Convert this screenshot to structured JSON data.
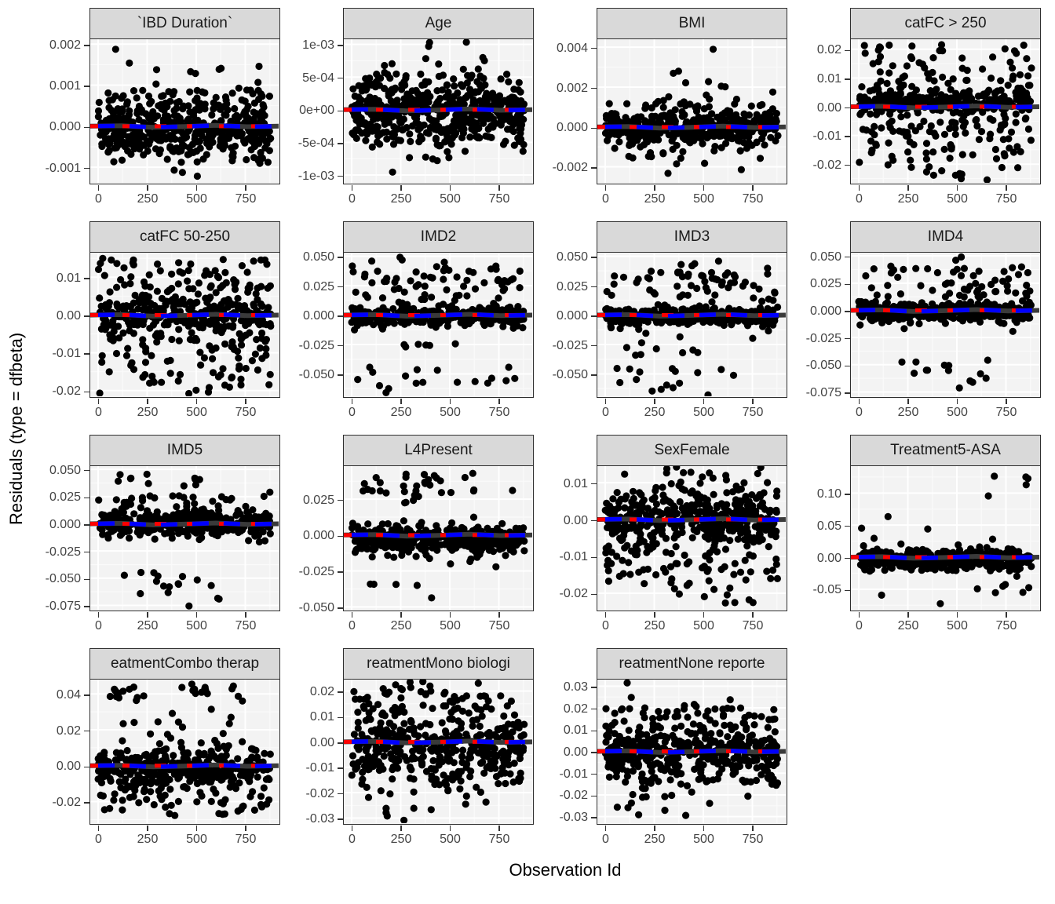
{
  "figure": {
    "y_axis_title": "Residuals (type = dfbeta)",
    "x_axis_title": "Observation Id"
  },
  "style": {
    "strip_bg": "#D9D9D9",
    "strip_text": "#1A1A1A",
    "panel_bg": "#F3F3F3",
    "grid_major": "#FFFFFF",
    "grid_minor": "#FAFAFA",
    "border": "#2F2F2F",
    "tick_text": "#444444",
    "point_color": "#000000",
    "reference_line_color": "#FF0000",
    "smooth_line_color": "#0000FF",
    "under_line_color": "#3A3A3A"
  },
  "chart_data": {
    "type": "scatter",
    "description": "Faceted dfbeta residual scatter plots per model term; black points, red dashed reference line at y=0 overlaid with blue dashed smooth line on a dark solid line.",
    "x": {
      "label": "Observation Id",
      "range": [
        -40,
        920
      ],
      "ticks": [
        {
          "label": "0",
          "v": 0
        },
        {
          "label": "250",
          "v": 250
        },
        {
          "label": "500",
          "v": 500
        },
        {
          "label": "750",
          "v": 750
        }
      ],
      "minor": [
        125,
        375,
        625,
        875
      ]
    },
    "reference_line": {
      "y": 0,
      "style": "dashed red + dashed blue over dark solid"
    },
    "facets": [
      {
        "title": "`IBD Duration`",
        "ylim": [
          -0.00138,
          0.00212
        ],
        "seed": 11,
        "yticks": [
          {
            "label": "0.002",
            "v": 0.002
          },
          {
            "label": "0.001",
            "v": 0.001
          },
          {
            "label": "0.000",
            "v": 0.0
          },
          {
            "label": "-0.001",
            "v": -0.001
          }
        ],
        "core": {
          "n": 380,
          "mu": -3e-05,
          "sd": 0.00028
        },
        "bands": [
          [
            55,
            0.0003,
            0.0009
          ],
          [
            40,
            -0.0009,
            -0.0003
          ],
          [
            6,
            0.0009,
            0.0015,
            250,
            880
          ],
          [
            1,
            0.00185,
            0.00195,
            30,
            90
          ],
          [
            3,
            0.0013,
            0.0015,
            500,
            880
          ],
          [
            3,
            -0.0013,
            -0.001,
            350,
            600
          ]
        ]
      },
      {
        "title": "Age",
        "ylim": [
          -0.00112,
          0.00108
        ],
        "seed": 22,
        "yticks": [
          {
            "label": "1e-03",
            "v": 0.001
          },
          {
            "label": "5e-04",
            "v": 0.0005
          },
          {
            "label": "0e+00",
            "v": 0.0
          },
          {
            "label": "-5e-04",
            "v": -0.0005
          },
          {
            "label": "-1e-03",
            "v": -0.001
          }
        ],
        "core": {
          "n": 420,
          "mu": -2e-05,
          "sd": 0.00018
        },
        "bands": [
          [
            45,
            0.00025,
            0.00055
          ],
          [
            55,
            -0.00055,
            -0.00025
          ],
          [
            8,
            0.00055,
            0.0009,
            150,
            700
          ],
          [
            2,
            0.00095,
            0.00105,
            180,
            430
          ],
          [
            6,
            -0.0008,
            -0.00055,
            250,
            650
          ],
          [
            1,
            -0.00098,
            -0.00092,
            180,
            220
          ]
        ]
      },
      {
        "title": "BMI",
        "ylim": [
          -0.0028,
          0.0044
        ],
        "seed": 33,
        "yticks": [
          {
            "label": "0.004",
            "v": 0.004
          },
          {
            "label": "0.002",
            "v": 0.002
          },
          {
            "label": "0.000",
            "v": 0.0
          },
          {
            "label": "-0.002",
            "v": -0.002
          }
        ],
        "core": {
          "n": 430,
          "mu": -5e-05,
          "sd": 0.00042
        },
        "bands": [
          [
            15,
            0.0009,
            0.0014
          ],
          [
            6,
            0.0016,
            0.0023,
            250,
            880
          ],
          [
            2,
            0.0025,
            0.0034,
            300,
            480
          ],
          [
            1,
            0.0038,
            0.004,
            540,
            580
          ],
          [
            8,
            -0.0016,
            -0.0011,
            100,
            800
          ],
          [
            1,
            -0.0025,
            -0.0023,
            320,
            360
          ]
        ]
      },
      {
        "title": "catFC > 250",
        "ylim": [
          -0.0265,
          0.0235
        ],
        "seed": 44,
        "yticks": [
          {
            "label": "0.02",
            "v": 0.02
          },
          {
            "label": "0.01",
            "v": 0.01
          },
          {
            "label": "0.00",
            "v": 0.0
          },
          {
            "label": "-0.01",
            "v": -0.01
          },
          {
            "label": "-0.02",
            "v": -0.02
          }
        ],
        "core": {
          "n": 280,
          "mu": 0.0012,
          "sd": 0.0016
        },
        "bands": [
          [
            50,
            0.004,
            0.012
          ],
          [
            35,
            0.012,
            0.022
          ],
          [
            60,
            -0.01,
            -0.002
          ],
          [
            45,
            -0.022,
            -0.01
          ],
          [
            8,
            -0.026,
            -0.022,
            300,
            700
          ]
        ]
      },
      {
        "title": "catFC 50-250",
        "ylim": [
          -0.0215,
          0.0165
        ],
        "seed": 55,
        "yticks": [
          {
            "label": "0.01",
            "v": 0.01
          },
          {
            "label": "0.00",
            "v": 0.0
          },
          {
            "label": "-0.01",
            "v": -0.01
          },
          {
            "label": "-0.02",
            "v": -0.02
          }
        ],
        "core": {
          "n": 320,
          "mu": 0.0,
          "sd": 0.0028
        },
        "bands": [
          [
            55,
            0.007,
            0.015
          ],
          [
            35,
            -0.012,
            -0.006
          ],
          [
            40,
            -0.021,
            -0.012
          ]
        ]
      },
      {
        "title": "IMD2",
        "ylim": [
          -0.069,
          0.053
        ],
        "seed": 66,
        "yticks": [
          {
            "label": "0.050",
            "v": 0.05
          },
          {
            "label": "0.025",
            "v": 0.025
          },
          {
            "label": "0.000",
            "v": 0.0
          },
          {
            "label": "-0.025",
            "v": -0.025
          },
          {
            "label": "-0.050",
            "v": -0.05
          }
        ],
        "core": {
          "n": 360,
          "mu": -0.0012,
          "sd": 0.0035
        },
        "bands": [
          [
            60,
            0.012,
            0.042
          ],
          [
            4,
            0.042,
            0.05,
            100,
            560
          ],
          [
            6,
            -0.028,
            -0.02,
            200,
            560
          ],
          [
            10,
            -0.056,
            -0.044
          ],
          [
            8,
            -0.067,
            -0.056,
            50,
            700
          ]
        ]
      },
      {
        "title": "IMD3",
        "ylim": [
          -0.069,
          0.053
        ],
        "seed": 77,
        "yticks": [
          {
            "label": "0.050",
            "v": 0.05
          },
          {
            "label": "0.025",
            "v": 0.025
          },
          {
            "label": "0.000",
            "v": 0.0
          },
          {
            "label": "-0.025",
            "v": -0.025
          },
          {
            "label": "-0.050",
            "v": -0.05
          }
        ],
        "core": {
          "n": 360,
          "mu": -0.0012,
          "sd": 0.0035
        },
        "bands": [
          [
            55,
            0.012,
            0.04
          ],
          [
            4,
            0.04,
            0.048,
            350,
            620
          ],
          [
            8,
            -0.035,
            -0.022,
            80,
            500
          ],
          [
            9,
            -0.055,
            -0.044,
            60,
            680
          ],
          [
            7,
            -0.068,
            -0.055,
            50,
            680
          ]
        ]
      },
      {
        "title": "IMD4",
        "ylim": [
          -0.079,
          0.053
        ],
        "seed": 88,
        "yticks": [
          {
            "label": "0.050",
            "v": 0.05
          },
          {
            "label": "0.025",
            "v": 0.025
          },
          {
            "label": "0.000",
            "v": 0.0
          },
          {
            "label": "-0.025",
            "v": -0.025
          },
          {
            "label": "-0.050",
            "v": -0.05
          },
          {
            "label": "-0.075",
            "v": -0.075
          }
        ],
        "core": {
          "n": 370,
          "mu": -0.0012,
          "sd": 0.004
        },
        "bands": [
          [
            55,
            0.012,
            0.042
          ],
          [
            2,
            0.044,
            0.05,
            440,
            530
          ],
          [
            9,
            -0.058,
            -0.045,
            60,
            700
          ],
          [
            4,
            -0.068,
            -0.058,
            550,
            700
          ],
          [
            1,
            -0.072,
            -0.068,
            480,
            540
          ]
        ]
      },
      {
        "title": "IMD5",
        "ylim": [
          -0.079,
          0.053
        ],
        "seed": 99,
        "yticks": [
          {
            "label": "0.050",
            "v": 0.05
          },
          {
            "label": "0.025",
            "v": 0.025
          },
          {
            "label": "0.000",
            "v": 0.0
          },
          {
            "label": "-0.025",
            "v": -0.025
          },
          {
            "label": "-0.050",
            "v": -0.05
          },
          {
            "label": "-0.075",
            "v": -0.075
          }
        ],
        "core": {
          "n": 380,
          "mu": 0.0,
          "sd": 0.006
        },
        "bands": [
          [
            25,
            0.014,
            0.026
          ],
          [
            6,
            0.036,
            0.047,
            60,
            260
          ],
          [
            5,
            0.028,
            0.047,
            430,
            520
          ],
          [
            8,
            -0.056,
            -0.044,
            30,
            620
          ],
          [
            6,
            -0.065,
            -0.055,
            120,
            620
          ],
          [
            3,
            -0.077,
            -0.068,
            450,
            620
          ]
        ]
      },
      {
        "title": "L4Present",
        "ylim": [
          -0.052,
          0.048
        ],
        "seed": 110,
        "yticks": [
          {
            "label": "0.025",
            "v": 0.025
          },
          {
            "label": "0.000",
            "v": 0.0
          },
          {
            "label": "-0.025",
            "v": -0.025
          },
          {
            "label": "-0.050",
            "v": -0.05
          }
        ],
        "core": {
          "n": 400,
          "mu": -0.004,
          "sd": 0.0045
        },
        "bands": [
          [
            18,
            0.03,
            0.044,
            50,
            460
          ],
          [
            14,
            0.022,
            0.032,
            50,
            700
          ],
          [
            2,
            0.04,
            0.045,
            560,
            660
          ],
          [
            1,
            0.029,
            0.032,
            780,
            830
          ],
          [
            4,
            -0.036,
            -0.028,
            60,
            400
          ],
          [
            1,
            -0.046,
            -0.043,
            380,
            430
          ]
        ]
      },
      {
        "title": "SexFemale",
        "ylim": [
          -0.0245,
          0.0145
        ],
        "seed": 121,
        "yticks": [
          {
            "label": "0.01",
            "v": 0.01
          },
          {
            "label": "0.00",
            "v": 0.0
          },
          {
            "label": "-0.01",
            "v": -0.01
          },
          {
            "label": "-0.02",
            "v": -0.02
          }
        ],
        "core": {
          "n": 430,
          "mu": 0.0005,
          "sd": 0.0042
        },
        "bands": [
          [
            45,
            -0.018,
            -0.009
          ],
          [
            10,
            -0.023,
            -0.018,
            150,
            850
          ],
          [
            8,
            0.01,
            0.013,
            80,
            800
          ]
        ]
      },
      {
        "title": "Treatment5-ASA",
        "ylim": [
          -0.082,
          0.142
        ],
        "seed": 132,
        "yticks": [
          {
            "label": "0.10",
            "v": 0.1
          },
          {
            "label": "0.05",
            "v": 0.05
          },
          {
            "label": "0.00",
            "v": 0.0
          },
          {
            "label": "-0.05",
            "v": -0.05
          }
        ],
        "core": {
          "n": 420,
          "mu": -0.003,
          "sd": 0.008
        },
        "bands": [
          [
            4,
            0.112,
            0.135,
            580,
            880
          ],
          [
            1,
            0.062,
            0.068,
            120,
            175
          ],
          [
            1,
            0.093,
            0.098,
            640,
            690
          ],
          [
            6,
            -0.058,
            -0.042,
            550,
            880
          ],
          [
            1,
            -0.062,
            -0.058,
            80,
            125
          ],
          [
            1,
            -0.075,
            -0.071,
            380,
            430
          ]
        ]
      },
      {
        "title": "eatmentCombo therap",
        "ylim": [
          -0.032,
          0.048
        ],
        "seed": 143,
        "yticks": [
          {
            "label": "0.04",
            "v": 0.04
          },
          {
            "label": "0.02",
            "v": 0.02
          },
          {
            "label": "0.00",
            "v": 0.0
          },
          {
            "label": "-0.02",
            "v": -0.02
          }
        ],
        "core": {
          "n": 390,
          "mu": -0.002,
          "sd": 0.0055
        },
        "bands": [
          [
            12,
            0.036,
            0.046,
            60,
            270
          ],
          [
            10,
            0.04,
            0.047,
            420,
            570
          ],
          [
            4,
            0.036,
            0.046,
            640,
            740
          ],
          [
            10,
            0.016,
            0.034,
            60,
            700
          ],
          [
            35,
            -0.028,
            -0.016
          ]
        ]
      },
      {
        "title": "reatmentMono biologi",
        "ylim": [
          -0.032,
          0.0245
        ],
        "seed": 154,
        "yticks": [
          {
            "label": "0.02",
            "v": 0.02
          },
          {
            "label": "0.01",
            "v": 0.01
          },
          {
            "label": "0.00",
            "v": 0.0
          },
          {
            "label": "-0.01",
            "v": -0.01
          },
          {
            "label": "-0.02",
            "v": -0.02
          },
          {
            "label": "-0.03",
            "v": -0.03
          }
        ],
        "core": {
          "n": 340,
          "mu": -0.001,
          "sd": 0.0055
        },
        "bands": [
          [
            55,
            0.008,
            0.021
          ],
          [
            4,
            0.021,
            0.025,
            60,
            520
          ],
          [
            45,
            -0.017,
            -0.008
          ],
          [
            14,
            -0.028,
            -0.017,
            60,
            760
          ],
          [
            2,
            -0.031,
            -0.028,
            100,
            430
          ]
        ]
      },
      {
        "title": "reatmentNone reporte",
        "ylim": [
          -0.033,
          0.033
        ],
        "seed": 165,
        "yticks": [
          {
            "label": "0.03",
            "v": 0.03
          },
          {
            "label": "0.02",
            "v": 0.02
          },
          {
            "label": "0.01",
            "v": 0.01
          },
          {
            "label": "0.00",
            "v": 0.0
          },
          {
            "label": "-0.01",
            "v": -0.01
          },
          {
            "label": "-0.02",
            "v": -0.02
          },
          {
            "label": "-0.03",
            "v": -0.03
          }
        ],
        "core": {
          "n": 350,
          "mu": -0.001,
          "sd": 0.005
        },
        "bands": [
          [
            55,
            0.008,
            0.02
          ],
          [
            5,
            0.02,
            0.026,
            60,
            650
          ],
          [
            1,
            0.03,
            0.032,
            80,
            130
          ],
          [
            40,
            -0.016,
            -0.008
          ],
          [
            14,
            -0.026,
            -0.016,
            60,
            800
          ],
          [
            3,
            -0.031,
            -0.026,
            100,
            460
          ]
        ]
      }
    ]
  }
}
